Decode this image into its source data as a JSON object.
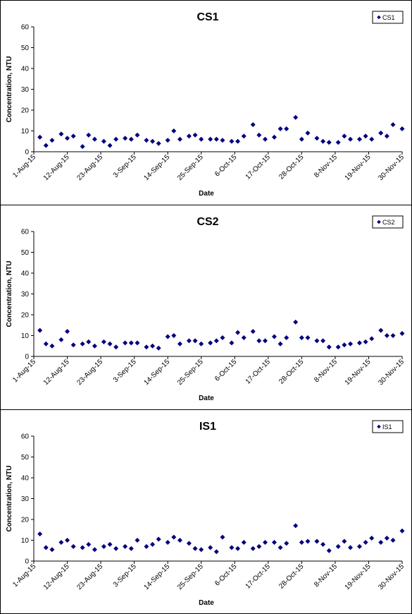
{
  "chart_data": [
    {
      "type": "scatter",
      "title": "CS1",
      "xlabel": "Date",
      "ylabel": "Concentration, NTU",
      "ylim": [
        0,
        60
      ],
      "yticks": [
        "0",
        "10",
        "20",
        "30",
        "40",
        "50",
        "60"
      ],
      "xlim": [
        "2015-08-01",
        "2015-11-30"
      ],
      "xticks": [
        "1-Aug-15",
        "12-Aug-15",
        "23-Aug-15",
        "3-Sep-15",
        "14-Sep-15",
        "25-Sep-15",
        "6-Oct-15",
        "17-Oct-15",
        "28-Oct-15",
        "8-Nov-15",
        "19-Nov-15",
        "30-Nov-15"
      ],
      "grid": false,
      "legend": "top-right",
      "series": [
        {
          "name": "CS1",
          "color": "#000080",
          "x": [
            "2015-08-03",
            "2015-08-05",
            "2015-08-07",
            "2015-08-10",
            "2015-08-12",
            "2015-08-14",
            "2015-08-17",
            "2015-08-19",
            "2015-08-21",
            "2015-08-24",
            "2015-08-26",
            "2015-08-28",
            "2015-08-31",
            "2015-09-02",
            "2015-09-04",
            "2015-09-07",
            "2015-09-09",
            "2015-09-11",
            "2015-09-14",
            "2015-09-16",
            "2015-09-18",
            "2015-09-21",
            "2015-09-23",
            "2015-09-25",
            "2015-09-28",
            "2015-09-30",
            "2015-10-02",
            "2015-10-05",
            "2015-10-07",
            "2015-10-09",
            "2015-10-12",
            "2015-10-14",
            "2015-10-16",
            "2015-10-19",
            "2015-10-21",
            "2015-10-23",
            "2015-10-26",
            "2015-10-28",
            "2015-10-30",
            "2015-11-02",
            "2015-11-04",
            "2015-11-06",
            "2015-11-09",
            "2015-11-11",
            "2015-11-13",
            "2015-11-16",
            "2015-11-18",
            "2015-11-20",
            "2015-11-23",
            "2015-11-25",
            "2015-11-27",
            "2015-11-30"
          ],
          "y": [
            7,
            3,
            5.5,
            8.5,
            6.5,
            7.5,
            2.5,
            8,
            6,
            5,
            3,
            6,
            6.5,
            6,
            8,
            5.5,
            5,
            4,
            5.5,
            10,
            6,
            7.5,
            8,
            6,
            6,
            6,
            5.5,
            5,
            5,
            7.5,
            13,
            8,
            6,
            7,
            11,
            11,
            16.5,
            6,
            9,
            6.5,
            5,
            4.5,
            4.5,
            7.5,
            6,
            6,
            7.5,
            6,
            9,
            7.5,
            13,
            11
          ]
        }
      ]
    },
    {
      "type": "scatter",
      "title": "CS2",
      "xlabel": "Date",
      "ylabel": "Concentration, NTU",
      "ylim": [
        0,
        60
      ],
      "yticks": [
        "0",
        "10",
        "20",
        "30",
        "40",
        "50",
        "60"
      ],
      "xlim": [
        "2015-08-01",
        "2015-11-30"
      ],
      "xticks": [
        "1-Aug-15",
        "12-Aug-15",
        "23-Aug-15",
        "3-Sep-15",
        "14-Sep-15",
        "25-Sep-15",
        "6-Oct-15",
        "17-Oct-15",
        "28-Oct-15",
        "8-Nov-15",
        "19-Nov-15",
        "30-Nov-15"
      ],
      "grid": false,
      "legend": "top-right",
      "series": [
        {
          "name": "CS2",
          "color": "#000080",
          "x": [
            "2015-08-03",
            "2015-08-05",
            "2015-08-07",
            "2015-08-10",
            "2015-08-12",
            "2015-08-14",
            "2015-08-17",
            "2015-08-19",
            "2015-08-21",
            "2015-08-24",
            "2015-08-26",
            "2015-08-28",
            "2015-08-31",
            "2015-09-02",
            "2015-09-04",
            "2015-09-07",
            "2015-09-09",
            "2015-09-11",
            "2015-09-14",
            "2015-09-16",
            "2015-09-18",
            "2015-09-21",
            "2015-09-23",
            "2015-09-25",
            "2015-09-28",
            "2015-09-30",
            "2015-10-02",
            "2015-10-05",
            "2015-10-07",
            "2015-10-09",
            "2015-10-12",
            "2015-10-14",
            "2015-10-16",
            "2015-10-19",
            "2015-10-21",
            "2015-10-23",
            "2015-10-26",
            "2015-10-28",
            "2015-10-30",
            "2015-11-02",
            "2015-11-04",
            "2015-11-06",
            "2015-11-09",
            "2015-11-11",
            "2015-11-13",
            "2015-11-16",
            "2015-11-18",
            "2015-11-20",
            "2015-11-23",
            "2015-11-25",
            "2015-11-27",
            "2015-11-30"
          ],
          "y": [
            12.5,
            6,
            5,
            8,
            12,
            5.5,
            6,
            7,
            5,
            7,
            6,
            4.5,
            6.5,
            6.5,
            6.5,
            4.5,
            5,
            4,
            9.5,
            10,
            6,
            7.5,
            7.5,
            6,
            6.5,
            7.5,
            9,
            6.5,
            11.5,
            9,
            12,
            7.5,
            7.5,
            9.5,
            6,
            9,
            16.5,
            9,
            9,
            7.5,
            7.5,
            4.5,
            4.5,
            5.5,
            6,
            6.5,
            7,
            8.5,
            12.5,
            10,
            10,
            11
          ]
        }
      ]
    },
    {
      "type": "scatter",
      "title": "IS1",
      "xlabel": "Date",
      "ylabel": "Concentration, NTU",
      "ylim": [
        0,
        60
      ],
      "yticks": [
        "0",
        "10",
        "20",
        "30",
        "40",
        "50",
        "60"
      ],
      "xlim": [
        "2015-08-01",
        "2015-11-30"
      ],
      "xticks": [
        "1-Aug-15",
        "12-Aug-15",
        "23-Aug-15",
        "3-Sep-15",
        "14-Sep-15",
        "25-Sep-15",
        "6-Oct-15",
        "17-Oct-15",
        "28-Oct-15",
        "8-Nov-15",
        "19-Nov-15",
        "30-Nov-15"
      ],
      "grid": false,
      "legend": "top-right",
      "series": [
        {
          "name": "IS1",
          "color": "#000080",
          "x": [
            "2015-08-03",
            "2015-08-05",
            "2015-08-07",
            "2015-08-10",
            "2015-08-12",
            "2015-08-14",
            "2015-08-17",
            "2015-08-19",
            "2015-08-21",
            "2015-08-24",
            "2015-08-26",
            "2015-08-28",
            "2015-08-31",
            "2015-09-02",
            "2015-09-04",
            "2015-09-07",
            "2015-09-09",
            "2015-09-11",
            "2015-09-14",
            "2015-09-16",
            "2015-09-18",
            "2015-09-21",
            "2015-09-23",
            "2015-09-25",
            "2015-09-28",
            "2015-09-30",
            "2015-10-02",
            "2015-10-05",
            "2015-10-07",
            "2015-10-09",
            "2015-10-12",
            "2015-10-14",
            "2015-10-16",
            "2015-10-19",
            "2015-10-21",
            "2015-10-23",
            "2015-10-26",
            "2015-10-28",
            "2015-10-30",
            "2015-11-02",
            "2015-11-04",
            "2015-11-06",
            "2015-11-09",
            "2015-11-11",
            "2015-11-13",
            "2015-11-16",
            "2015-11-18",
            "2015-11-20",
            "2015-11-23",
            "2015-11-25",
            "2015-11-27",
            "2015-11-30"
          ],
          "y": [
            13,
            6.5,
            5.5,
            9,
            10,
            7,
            6.5,
            8,
            5.5,
            7,
            8,
            6,
            7,
            6,
            10,
            7,
            8,
            10.5,
            9,
            11.5,
            10,
            8.5,
            6,
            5.5,
            6.5,
            4.5,
            11.5,
            6.5,
            6,
            9,
            6,
            7,
            9,
            9,
            6.5,
            8.5,
            17,
            9,
            9.5,
            9.5,
            8,
            5,
            7,
            9.5,
            6.5,
            7,
            9,
            11,
            9,
            11,
            10,
            14.5
          ]
        }
      ]
    }
  ]
}
